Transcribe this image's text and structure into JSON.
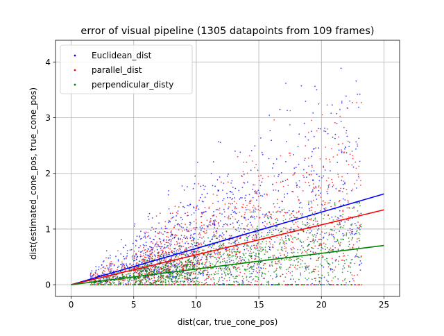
{
  "chart_data": {
    "type": "scatter",
    "title": "error of visual pipeline (1305 datapoints from 109 frames)",
    "xlabel": "dist(car, true_cone_pos)",
    "ylabel": "dist(estimated_cone_pos, true_cone_pos)",
    "xlim": [
      -1.25,
      26.25
    ],
    "ylim": [
      -0.21,
      4.39
    ],
    "xticks": [
      0,
      5,
      10,
      15,
      20,
      25
    ],
    "xtick_labels": [
      "0",
      "5",
      "10",
      "15",
      "20",
      "25"
    ],
    "yticks": [
      0,
      1,
      2,
      3,
      4
    ],
    "ytick_labels": [
      "0",
      "1",
      "2",
      "3",
      "4"
    ],
    "grid": true,
    "legend_position": "top-left",
    "series": [
      {
        "name": "Euclidean_dist",
        "color": "#0000ff",
        "trend": {
          "slope": 0.0652,
          "intercept": 0.0
        },
        "scatter_model": {
          "slope": 0.065,
          "spread": 0.9,
          "count": 1305,
          "x_range": [
            1.5,
            23.2
          ],
          "max_y": 4.18
        }
      },
      {
        "name": "parallel_dist",
        "color": "#ff0000",
        "trend": {
          "slope": 0.0538,
          "intercept": 0.0
        },
        "scatter_model": {
          "slope": 0.054,
          "spread": 0.95,
          "count": 1305,
          "x_range": [
            1.5,
            23.2
          ],
          "max_y": 3.27
        }
      },
      {
        "name": "perpendicular_disty",
        "color": "#008000",
        "trend": {
          "slope": 0.0282,
          "intercept": 0.0
        },
        "scatter_model": {
          "slope": 0.028,
          "spread": 0.95,
          "count": 1305,
          "x_range": [
            1.5,
            23.2
          ],
          "max_y": 1.47
        }
      }
    ],
    "trend_lines_x": [
      0,
      25
    ]
  }
}
